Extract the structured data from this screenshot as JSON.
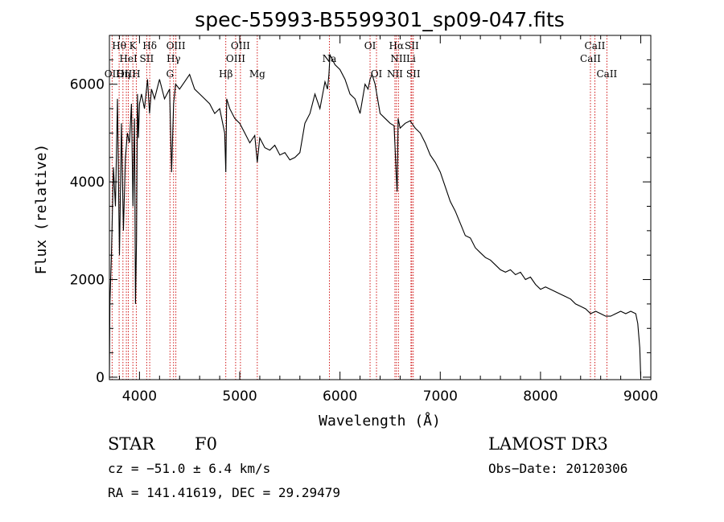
{
  "chart_data": {
    "type": "line",
    "title": "spec-55993-B5599301_sp09-047.fits",
    "xlabel": "Wavelength (Å)",
    "ylabel": "Flux (relative)",
    "xlim": [
      3700,
      9100
    ],
    "ylim": [
      -50,
      7000
    ],
    "x_ticks": [
      4000,
      5000,
      6000,
      7000,
      8000,
      9000
    ],
    "y_ticks": [
      0,
      2000,
      4000,
      6000
    ],
    "grid": false,
    "series": [
      {
        "name": "flux",
        "x": [
          3700,
          3705,
          3720,
          3740,
          3760,
          3780,
          3800,
          3820,
          3840,
          3860,
          3880,
          3900,
          3920,
          3935,
          3950,
          3960,
          3970,
          3980,
          3990,
          4000,
          4020,
          4050,
          4080,
          4100,
          4120,
          4150,
          4200,
          4250,
          4300,
          4320,
          4340,
          4360,
          4400,
          4450,
          4500,
          4550,
          4600,
          4650,
          4700,
          4750,
          4800,
          4850,
          4861,
          4870,
          4900,
          4950,
          5000,
          5050,
          5100,
          5150,
          5175,
          5200,
          5250,
          5300,
          5350,
          5400,
          5450,
          5500,
          5550,
          5600,
          5650,
          5700,
          5750,
          5800,
          5850,
          5875,
          5890,
          5900,
          5950,
          6000,
          6050,
          6100,
          6150,
          6200,
          6250,
          6280,
          6300,
          6320,
          6350,
          6400,
          6450,
          6500,
          6540,
          6560,
          6570,
          6580,
          6600,
          6650,
          6700,
          6750,
          6800,
          6850,
          6900,
          6950,
          7000,
          7050,
          7100,
          7150,
          7200,
          7250,
          7300,
          7350,
          7400,
          7450,
          7500,
          7550,
          7600,
          7650,
          7700,
          7750,
          7800,
          7850,
          7900,
          7950,
          8000,
          8050,
          8100,
          8150,
          8200,
          8250,
          8300,
          8350,
          8400,
          8450,
          8500,
          8550,
          8600,
          8650,
          8700,
          8750,
          8800,
          8850,
          8900,
          8950,
          8970,
          8990,
          9000
        ],
        "values": [
          0,
          1500,
          2500,
          4300,
          3500,
          5700,
          2500,
          5200,
          3000,
          4500,
          5000,
          4800,
          5600,
          3500,
          5300,
          1500,
          2800,
          5800,
          4900,
          5600,
          5800,
          5500,
          6100,
          5400,
          5900,
          5700,
          6100,
          5700,
          5900,
          4200,
          5600,
          6000,
          5900,
          6050,
          6200,
          5900,
          5800,
          5700,
          5600,
          5400,
          5500,
          5000,
          4200,
          5700,
          5500,
          5300,
          5200,
          5000,
          4800,
          4950,
          4400,
          4900,
          4700,
          4650,
          4750,
          4550,
          4600,
          4450,
          4500,
          4600,
          5200,
          5400,
          5800,
          5500,
          6050,
          5900,
          6200,
          6600,
          6400,
          6300,
          6100,
          5800,
          5700,
          5400,
          6000,
          5900,
          6100,
          6200,
          6000,
          5400,
          5300,
          5200,
          5150,
          4200,
          3800,
          5300,
          5100,
          5200,
          5250,
          5100,
          5000,
          4800,
          4550,
          4400,
          4200,
          3900,
          3600,
          3400,
          3150,
          2900,
          2850,
          2650,
          2550,
          2450,
          2400,
          2300,
          2200,
          2150,
          2200,
          2100,
          2150,
          2000,
          2050,
          1900,
          1800,
          1850,
          1800,
          1750,
          1700,
          1650,
          1600,
          1500,
          1450,
          1400,
          1300,
          1350,
          1300,
          1250,
          1250,
          1300,
          1350,
          1300,
          1350,
          1300,
          1100,
          600,
          0
        ]
      }
    ],
    "line_markers": [
      {
        "name": "OII",
        "x": 3727,
        "label": "OII",
        "row": 3
      },
      {
        "name": "H-theta",
        "x": 3797,
        "label": "Hθ",
        "row": 1
      },
      {
        "name": "OIII-3869",
        "x": 3869,
        "label": "OIII",
        "row": 3
      },
      {
        "name": "H-eta",
        "x": 3835,
        "label": "Hη",
        "row": 3
      },
      {
        "name": "HeI",
        "x": 3889,
        "label": "HeI",
        "row": 2
      },
      {
        "name": "K",
        "x": 3934,
        "label": "K",
        "row": 1
      },
      {
        "name": "H",
        "x": 3968,
        "label": "H",
        "row": 3
      },
      {
        "name": "SII-4072",
        "x": 4072,
        "label": "SII",
        "row": 2
      },
      {
        "name": "H-delta",
        "x": 4102,
        "label": "Hδ",
        "row": 1
      },
      {
        "name": "G",
        "x": 4304,
        "label": "G",
        "row": 3
      },
      {
        "name": "H-gamma",
        "x": 4340,
        "label": "Hγ",
        "row": 2
      },
      {
        "name": "OIII-4363",
        "x": 4363,
        "label": "OIII",
        "row": 1
      },
      {
        "name": "H-beta",
        "x": 4861,
        "label": "Hβ",
        "row": 3
      },
      {
        "name": "OIII-4959",
        "x": 4959,
        "label": "OIII",
        "row": 2
      },
      {
        "name": "OIII-5007",
        "x": 5007,
        "label": "OIII",
        "row": 1
      },
      {
        "name": "Mg",
        "x": 5175,
        "label": "Mg",
        "row": 3
      },
      {
        "name": "Na",
        "x": 5894,
        "label": "Na",
        "row": 2
      },
      {
        "name": "OI-6300",
        "x": 6300,
        "label": "OI",
        "row": 1
      },
      {
        "name": "OI-6364",
        "x": 6364,
        "label": "OI",
        "row": 3
      },
      {
        "name": "NII-6548",
        "x": 6548,
        "label": "NII",
        "row": 3
      },
      {
        "name": "H-alpha",
        "x": 6563,
        "label": "Hα",
        "row": 1
      },
      {
        "name": "NII-6583",
        "x": 6583,
        "label": "NII",
        "row": 2
      },
      {
        "name": "Li",
        "x": 6708,
        "label": "Li",
        "row": 2
      },
      {
        "name": "SII-6716",
        "x": 6716,
        "label": "SII",
        "row": 1
      },
      {
        "name": "SII-6731",
        "x": 6731,
        "label": "SII",
        "row": 3
      },
      {
        "name": "CaII-8498",
        "x": 8498,
        "label": "CaII",
        "row": 2
      },
      {
        "name": "CaII-8542",
        "x": 8542,
        "label": "CaII",
        "row": 1
      },
      {
        "name": "CaII-8662",
        "x": 8662,
        "label": "CaII",
        "row": 3
      }
    ]
  },
  "info": {
    "object_class": "STAR",
    "subclass": "F0",
    "survey": "LAMOST DR3",
    "redshift": "cz = −51.0 ± 6.4 km/s",
    "obs_date": "Obs−Date: 20120306",
    "coords": "RA = 141.41619, DEC =  29.29479"
  }
}
